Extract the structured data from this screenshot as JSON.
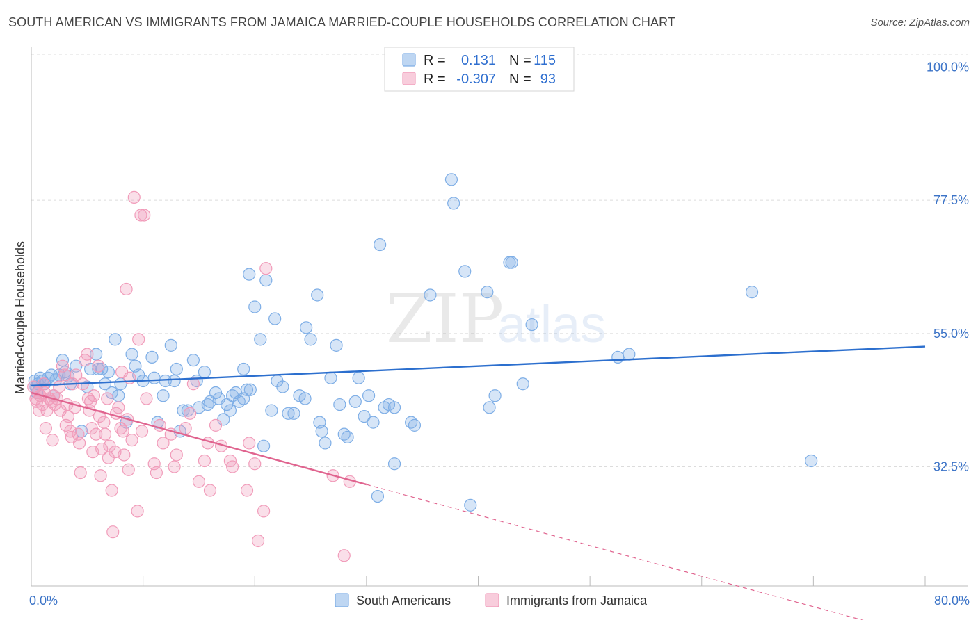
{
  "title": "SOUTH AMERICAN VS IMMIGRANTS FROM JAMAICA MARRIED-COUPLE HOUSEHOLDS CORRELATION CHART",
  "source": "Source: ZipAtlas.com",
  "watermark": {
    "zip": "ZIP",
    "atlas": "atlas"
  },
  "legend": {
    "rows": [
      {
        "r_label": "R =",
        "r_value": "0.131",
        "n_label": "N =",
        "n_value": "115",
        "color": "#7eaee6"
      },
      {
        "r_label": "R =",
        "r_value": "-0.307",
        "n_label": "N =",
        "n_value": "93",
        "color": "#f19cba"
      }
    ],
    "bottom": [
      {
        "label": "South Americans",
        "color": "#7eaee6"
      },
      {
        "label": "Immigrants from Jamaica",
        "color": "#f19cba"
      }
    ]
  },
  "chart_data": {
    "type": "scatter",
    "title": "SOUTH AMERICAN VS IMMIGRANTS FROM JAMAICA MARRIED-COUPLE HOUSEHOLDS CORRELATION CHART",
    "xlabel": "",
    "ylabel": "Married-couple Households",
    "xlim": [
      0,
      80
    ],
    "ylim": [
      10,
      102
    ],
    "x_tick_labels": [
      "0.0%",
      "80.0%"
    ],
    "y_ticks": [
      32.5,
      55.0,
      77.5,
      100.0
    ],
    "y_tick_labels": [
      "32.5%",
      "55.0%",
      "77.5%",
      "100.0%"
    ],
    "series": [
      {
        "name": "South Americans",
        "color": "#7eaee6",
        "line_color": "#2c6fce",
        "trend": {
          "x0": 0,
          "y0": 46.2,
          "x1": 80,
          "y1": 52.8
        },
        "points": [
          [
            0.3,
            47.0
          ],
          [
            0.4,
            46.0
          ],
          [
            0.5,
            45.0
          ],
          [
            0.6,
            46.5
          ],
          [
            0.8,
            47.5
          ],
          [
            1.0,
            47.0
          ],
          [
            1.2,
            46.5
          ],
          [
            1.5,
            47.5
          ],
          [
            1.8,
            48.0
          ],
          [
            2.0,
            44.5
          ],
          [
            2.2,
            47.2
          ],
          [
            2.5,
            48.0
          ],
          [
            2.8,
            50.5
          ],
          [
            3.0,
            48.5
          ],
          [
            3.3,
            47.8
          ],
          [
            3.5,
            46.5
          ],
          [
            4.0,
            49.5
          ],
          [
            4.5,
            38.5
          ],
          [
            5.0,
            46.0
          ],
          [
            5.3,
            49.0
          ],
          [
            5.8,
            51.5
          ],
          [
            6.0,
            49.0
          ],
          [
            6.3,
            49.0
          ],
          [
            6.6,
            46.5
          ],
          [
            6.9,
            48.5
          ],
          [
            7.2,
            45.0
          ],
          [
            7.5,
            54.0
          ],
          [
            7.8,
            44.5
          ],
          [
            8.0,
            46.5
          ],
          [
            8.5,
            40.0
          ],
          [
            9.0,
            51.5
          ],
          [
            9.3,
            49.5
          ],
          [
            9.6,
            48.0
          ],
          [
            10.0,
            47.0
          ],
          [
            10.8,
            51.0
          ],
          [
            11.0,
            47.5
          ],
          [
            11.3,
            40.0
          ],
          [
            11.8,
            44.5
          ],
          [
            12.0,
            47.0
          ],
          [
            12.5,
            53.0
          ],
          [
            12.8,
            47.0
          ],
          [
            13.0,
            49.0
          ],
          [
            13.3,
            38.5
          ],
          [
            13.6,
            42.0
          ],
          [
            14.0,
            42.0
          ],
          [
            14.5,
            50.5
          ],
          [
            14.8,
            47.0
          ],
          [
            15.0,
            42.5
          ],
          [
            15.5,
            48.5
          ],
          [
            15.8,
            43.0
          ],
          [
            16.0,
            43.5
          ],
          [
            16.5,
            45.0
          ],
          [
            16.8,
            44.0
          ],
          [
            17.2,
            40.5
          ],
          [
            17.5,
            43.0
          ],
          [
            17.8,
            42.0
          ],
          [
            18.0,
            44.5
          ],
          [
            18.3,
            45.0
          ],
          [
            18.6,
            43.5
          ],
          [
            19.0,
            44.0
          ],
          [
            19.3,
            45.5
          ],
          [
            19.6,
            45.5
          ],
          [
            19.0,
            49.0
          ],
          [
            19.5,
            65.0
          ],
          [
            20.0,
            59.5
          ],
          [
            20.5,
            54.0
          ],
          [
            20.8,
            36.0
          ],
          [
            21.0,
            64.0
          ],
          [
            21.5,
            42.0
          ],
          [
            21.8,
            57.5
          ],
          [
            22.0,
            47.0
          ],
          [
            22.5,
            46.0
          ],
          [
            23.0,
            41.5
          ],
          [
            23.5,
            41.5
          ],
          [
            24.0,
            44.5
          ],
          [
            24.5,
            44.0
          ],
          [
            24.6,
            56.0
          ],
          [
            25.0,
            54.0
          ],
          [
            25.6,
            61.5
          ],
          [
            25.8,
            40.0
          ],
          [
            26.0,
            38.5
          ],
          [
            26.3,
            36.5
          ],
          [
            26.8,
            47.5
          ],
          [
            27.3,
            53.0
          ],
          [
            27.6,
            43.0
          ],
          [
            28.0,
            38.0
          ],
          [
            28.3,
            37.5
          ],
          [
            29.0,
            43.5
          ],
          [
            29.3,
            47.5
          ],
          [
            29.8,
            41.0
          ],
          [
            30.2,
            44.5
          ],
          [
            30.6,
            40.0
          ],
          [
            31.2,
            70.0
          ],
          [
            31.6,
            42.5
          ],
          [
            32.0,
            43.0
          ],
          [
            32.5,
            42.5
          ],
          [
            32.5,
            33.0
          ],
          [
            31.0,
            27.5
          ],
          [
            34.0,
            40.0
          ],
          [
            34.3,
            39.5
          ],
          [
            35.7,
            61.5
          ],
          [
            37.6,
            81.0
          ],
          [
            37.8,
            77.0
          ],
          [
            38.8,
            65.5
          ],
          [
            39.3,
            26.0
          ],
          [
            40.8,
            62.0
          ],
          [
            41.0,
            42.5
          ],
          [
            41.5,
            44.5
          ],
          [
            42.8,
            67.0
          ],
          [
            43.0,
            67.0
          ],
          [
            44.0,
            46.5
          ],
          [
            44.8,
            56.5
          ],
          [
            52.5,
            51.0
          ],
          [
            53.5,
            51.5
          ],
          [
            64.5,
            62.0
          ],
          [
            69.8,
            33.5
          ]
        ]
      },
      {
        "name": "Immigrants from Jamaica",
        "color": "#f19cba",
        "line_color": "#e0648f",
        "trend": {
          "x0": 0,
          "y0": 45.0,
          "x1": 30,
          "y1": 29.5
        },
        "trend_extension": {
          "x0": 30,
          "y0": 29.5,
          "x1": 80,
          "y1": 3.7
        },
        "points": [
          [
            0.2,
            46.0
          ],
          [
            0.4,
            44.0
          ],
          [
            0.5,
            43.5
          ],
          [
            0.6,
            45.0
          ],
          [
            0.7,
            42.0
          ],
          [
            0.8,
            44.5
          ],
          [
            1.0,
            43.0
          ],
          [
            1.1,
            46.5
          ],
          [
            1.2,
            45.0
          ],
          [
            1.3,
            39.0
          ],
          [
            1.4,
            42.0
          ],
          [
            1.6,
            44.0
          ],
          [
            1.8,
            43.5
          ],
          [
            1.9,
            37.0
          ],
          [
            2.0,
            44.5
          ],
          [
            2.1,
            43.0
          ],
          [
            2.3,
            44.0
          ],
          [
            2.5,
            46.0
          ],
          [
            2.6,
            42.0
          ],
          [
            2.8,
            49.5
          ],
          [
            3.0,
            48.0
          ],
          [
            3.1,
            39.5
          ],
          [
            3.2,
            43.0
          ],
          [
            3.3,
            41.0
          ],
          [
            3.5,
            38.5
          ],
          [
            3.6,
            37.5
          ],
          [
            3.7,
            46.5
          ],
          [
            3.9,
            42.5
          ],
          [
            4.0,
            48.0
          ],
          [
            4.2,
            38.0
          ],
          [
            4.3,
            36.5
          ],
          [
            4.4,
            31.5
          ],
          [
            4.6,
            46.5
          ],
          [
            4.8,
            50.5
          ],
          [
            5.0,
            51.5
          ],
          [
            5.1,
            44.0
          ],
          [
            5.2,
            42.0
          ],
          [
            5.3,
            43.5
          ],
          [
            5.4,
            39.0
          ],
          [
            5.5,
            35.0
          ],
          [
            5.6,
            44.5
          ],
          [
            5.8,
            38.0
          ],
          [
            6.0,
            49.5
          ],
          [
            6.1,
            41.0
          ],
          [
            6.2,
            31.0
          ],
          [
            6.3,
            35.5
          ],
          [
            6.5,
            40.0
          ],
          [
            6.6,
            38.0
          ],
          [
            6.8,
            44.0
          ],
          [
            6.9,
            34.0
          ],
          [
            7.0,
            36.0
          ],
          [
            7.2,
            28.5
          ],
          [
            7.3,
            21.5
          ],
          [
            7.5,
            35.0
          ],
          [
            7.6,
            41.5
          ],
          [
            7.8,
            42.5
          ],
          [
            8.0,
            39.0
          ],
          [
            8.1,
            48.5
          ],
          [
            8.2,
            38.5
          ],
          [
            8.3,
            34.5
          ],
          [
            8.5,
            62.5
          ],
          [
            8.6,
            40.5
          ],
          [
            8.7,
            32.0
          ],
          [
            8.8,
            47.5
          ],
          [
            9.0,
            37.0
          ],
          [
            9.2,
            78.0
          ],
          [
            9.5,
            25.0
          ],
          [
            9.6,
            54.0
          ],
          [
            9.8,
            75.0
          ],
          [
            9.9,
            38.5
          ],
          [
            10.1,
            75.0
          ],
          [
            10.3,
            44.0
          ],
          [
            11.0,
            33.0
          ],
          [
            11.2,
            31.5
          ],
          [
            11.5,
            39.5
          ],
          [
            11.8,
            36.5
          ],
          [
            12.5,
            38.0
          ],
          [
            12.8,
            32.5
          ],
          [
            13.0,
            34.5
          ],
          [
            13.8,
            39.0
          ],
          [
            14.2,
            41.5
          ],
          [
            14.5,
            46.5
          ],
          [
            15.0,
            30.0
          ],
          [
            15.5,
            33.5
          ],
          [
            15.8,
            36.5
          ],
          [
            16.0,
            28.5
          ],
          [
            16.5,
            39.5
          ],
          [
            17.0,
            36.0
          ],
          [
            17.8,
            33.5
          ],
          [
            18.0,
            32.5
          ],
          [
            19.3,
            28.5
          ],
          [
            19.5,
            36.5
          ],
          [
            20.0,
            33.0
          ],
          [
            20.3,
            20.0
          ],
          [
            20.8,
            25.0
          ],
          [
            21.0,
            66.0
          ],
          [
            27.0,
            31.0
          ],
          [
            28.0,
            17.5
          ],
          [
            28.5,
            30.0
          ]
        ]
      }
    ]
  }
}
